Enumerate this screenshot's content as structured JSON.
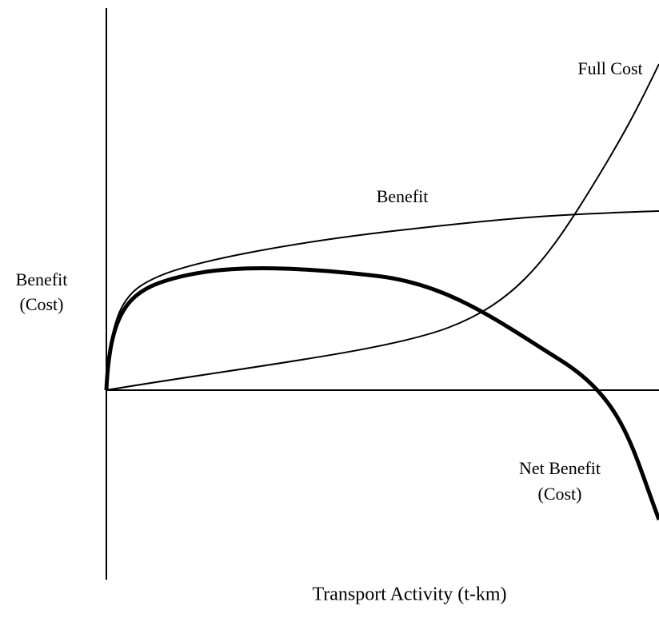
{
  "title_axis": {
    "y_label": [
      "Benefit",
      "(Cost)"
    ],
    "x_label": "Transport Activity (t-km)"
  },
  "curves": {
    "full_cost": "Full Cost",
    "benefit": "Benefit",
    "net_benefit": [
      "Net Benefit",
      "(Cost)"
    ]
  }
}
